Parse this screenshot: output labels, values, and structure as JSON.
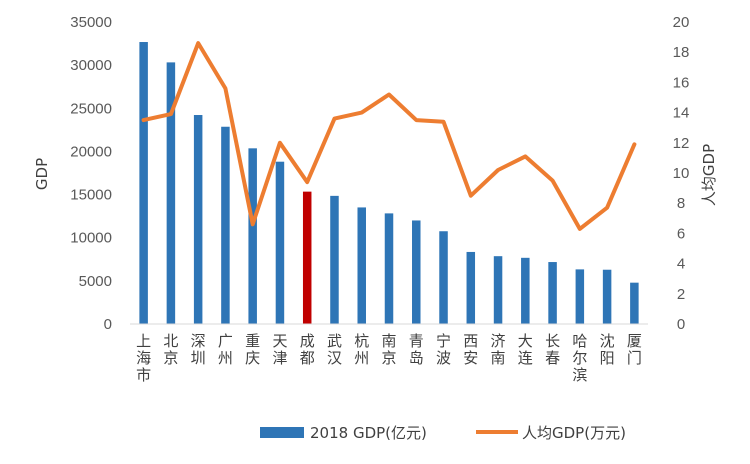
{
  "chart_data": {
    "type": "bar+line",
    "categories": [
      "上海市",
      "北京",
      "深圳",
      "广州",
      "重庆",
      "天津",
      "成都",
      "武汉",
      "杭州",
      "南京",
      "青岛",
      "宁波",
      "西安",
      "济南",
      "大连",
      "长春",
      "哈尔滨",
      "沈阳",
      "厦门"
    ],
    "series": [
      {
        "name": "2018 GDP(亿元)",
        "type": "bar",
        "axis": "left",
        "color": "#2E75B6",
        "highlight": {
          "category": "成都",
          "color": "#C00000"
        },
        "values": [
          32680,
          30320,
          24220,
          22860,
          20360,
          18810,
          15340,
          14850,
          13510,
          12820,
          12000,
          10750,
          8350,
          7860,
          7670,
          7180,
          6330,
          6290,
          4790
        ]
      },
      {
        "name": "人均GDP(万元)",
        "type": "line",
        "axis": "right",
        "color": "#ED7D31",
        "values": [
          13.5,
          13.9,
          18.6,
          15.6,
          6.6,
          12.0,
          9.4,
          13.6,
          14.0,
          15.2,
          13.5,
          13.4,
          8.5,
          10.2,
          11.1,
          9.5,
          6.3,
          7.7,
          11.9
        ]
      }
    ],
    "ylabel": "GDP",
    "y2label": "人均GDP",
    "ylim": [
      0,
      35000
    ],
    "y2lim": [
      0,
      20
    ],
    "yticks": [
      "0",
      "5000",
      "10000",
      "15000",
      "20000",
      "25000",
      "30000",
      "35000"
    ],
    "y2ticks": [
      "0",
      "2",
      "4",
      "6",
      "8",
      "10",
      "12",
      "14",
      "16",
      "18",
      "20"
    ],
    "legend_position": "bottom",
    "grid": false
  }
}
